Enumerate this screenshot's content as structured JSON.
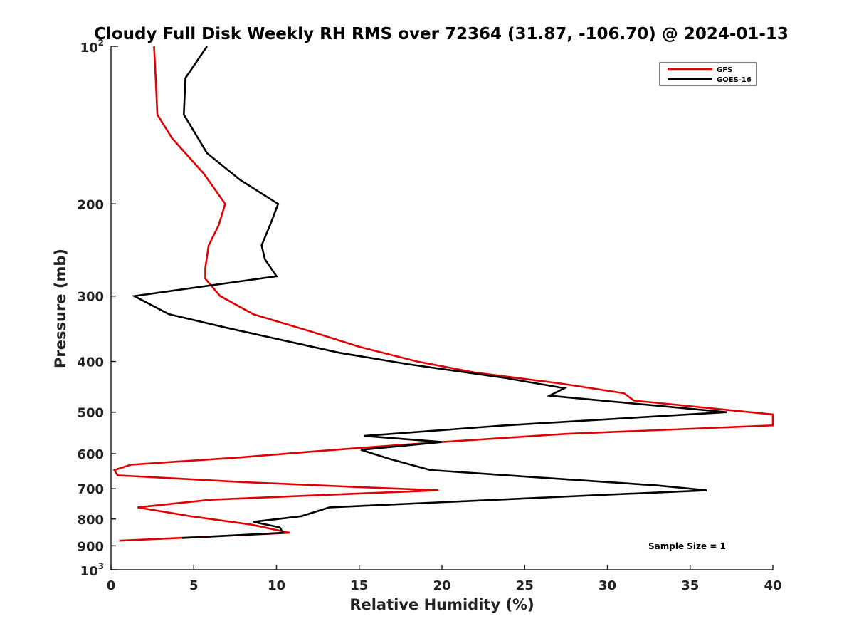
{
  "chart_data": {
    "type": "line",
    "title": "Cloudy Full Disk Weekly RH RMS over 72364 (31.87, -106.70) @ 2024-01-13",
    "xlabel": "Relative Humidity (%)",
    "ylabel": "Pressure (mb)",
    "xlim": [
      0,
      40
    ],
    "ylim": [
      1000,
      100
    ],
    "yscale": "log",
    "y_reversed": true,
    "x_ticks": [
      0,
      5,
      10,
      15,
      20,
      25,
      30,
      35,
      40
    ],
    "x_tick_labels": [
      "0",
      "5",
      "10",
      "15",
      "20",
      "25",
      "30",
      "35",
      "40"
    ],
    "y_ticks": [
      200,
      300,
      400,
      500,
      600,
      700,
      800,
      900
    ],
    "y_tick_labels": [
      "200",
      "300",
      "400",
      "500",
      "600",
      "700",
      "800",
      "900"
    ],
    "y_decade_ticks": [
      {
        "value": 100,
        "base": "10",
        "exp": "2"
      },
      {
        "value": 1000,
        "base": "10",
        "exp": "3"
      }
    ],
    "grid": false,
    "legend_position": "top-right",
    "annotation": "Sample Size = 1",
    "series": [
      {
        "name": "GFS",
        "color": "#e00000",
        "points": [
          [
            2.6,
            100
          ],
          [
            2.7,
            115
          ],
          [
            2.8,
            135
          ],
          [
            3.7,
            150
          ],
          [
            5.6,
            175
          ],
          [
            6.9,
            200
          ],
          [
            6.5,
            220
          ],
          [
            5.9,
            240
          ],
          [
            5.7,
            265
          ],
          [
            5.7,
            278
          ],
          [
            6.6,
            300
          ],
          [
            8.6,
            325
          ],
          [
            12.0,
            350
          ],
          [
            15.0,
            375
          ],
          [
            18.5,
            400
          ],
          [
            22.0,
            420
          ],
          [
            27.0,
            440
          ],
          [
            31.0,
            460
          ],
          [
            31.6,
            475
          ],
          [
            40.0,
            505
          ],
          [
            40.0,
            530
          ],
          [
            27.5,
            550
          ],
          [
            20.0,
            570
          ],
          [
            15.0,
            585
          ],
          [
            12.0,
            595
          ],
          [
            7.8,
            610
          ],
          [
            1.2,
            630
          ],
          [
            0.2,
            645
          ],
          [
            0.4,
            660
          ],
          [
            8.0,
            680
          ],
          [
            15.0,
            695
          ],
          [
            19.8,
            705
          ],
          [
            15.0,
            715
          ],
          [
            6.0,
            735
          ],
          [
            1.6,
            760
          ],
          [
            4.8,
            790
          ],
          [
            8.5,
            820
          ],
          [
            10.8,
            850
          ],
          [
            0.5,
            880
          ]
        ]
      },
      {
        "name": "GOES-16",
        "color": "#000000",
        "points": [
          [
            5.8,
            100
          ],
          [
            4.5,
            115
          ],
          [
            4.4,
            135
          ],
          [
            5.8,
            160
          ],
          [
            7.8,
            180
          ],
          [
            10.1,
            200
          ],
          [
            9.6,
            220
          ],
          [
            9.1,
            240
          ],
          [
            9.3,
            255
          ],
          [
            10.0,
            275
          ],
          [
            1.4,
            300
          ],
          [
            3.5,
            325
          ],
          [
            7.0,
            345
          ],
          [
            10.5,
            365
          ],
          [
            13.8,
            385
          ],
          [
            18.0,
            405
          ],
          [
            23.8,
            430
          ],
          [
            27.4,
            450
          ],
          [
            26.5,
            465
          ],
          [
            37.2,
            500
          ],
          [
            23.8,
            530
          ],
          [
            15.3,
            555
          ],
          [
            20.0,
            570
          ],
          [
            15.1,
            590
          ],
          [
            16.9,
            615
          ],
          [
            19.3,
            645
          ],
          [
            27.0,
            670
          ],
          [
            33.0,
            690
          ],
          [
            36.0,
            705
          ],
          [
            29.5,
            720
          ],
          [
            13.2,
            760
          ],
          [
            11.5,
            790
          ],
          [
            8.6,
            810
          ],
          [
            10.2,
            830
          ],
          [
            10.4,
            850
          ],
          [
            4.3,
            870
          ]
        ]
      }
    ]
  }
}
